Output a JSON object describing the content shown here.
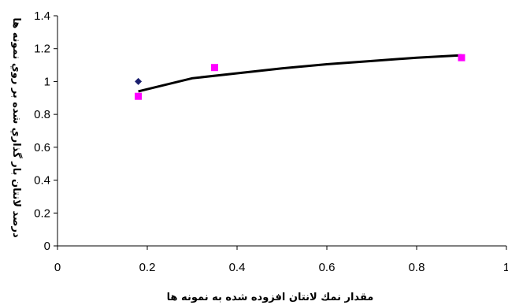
{
  "chart_data": {
    "type": "scatter",
    "xlabel": "مقدار نمك لانتان افزوده شده به نمونه ها",
    "ylabel": "درصد لانتان بار گذاري شده بر روي نمونه ها",
    "xlim": [
      0,
      1
    ],
    "ylim": [
      0,
      1.4
    ],
    "x_ticks": [
      "0",
      "0.2",
      "0.4",
      "0.6",
      "0.8",
      "1"
    ],
    "y_ticks": [
      "0",
      "0.2",
      "0.4",
      "0.6",
      "0.8",
      "1",
      "1.2",
      "1.4"
    ],
    "grid": false,
    "series": [
      {
        "marker": "diamond",
        "color": "#1a1f6e",
        "points": [
          {
            "x": 0.18,
            "y": 1.0
          }
        ]
      },
      {
        "marker": "square",
        "color": "#ff00ff",
        "points": [
          {
            "x": 0.18,
            "y": 0.91
          },
          {
            "x": 0.35,
            "y": 1.085
          },
          {
            "x": 0.9,
            "y": 1.145
          }
        ]
      }
    ],
    "trendline": {
      "type": "logarithmic",
      "color": "#000000",
      "x": [
        0.18,
        0.3,
        0.4,
        0.5,
        0.6,
        0.7,
        0.8,
        0.9
      ],
      "y": [
        0.94,
        1.02,
        1.05,
        1.08,
        1.105,
        1.125,
        1.145,
        1.16
      ]
    }
  }
}
